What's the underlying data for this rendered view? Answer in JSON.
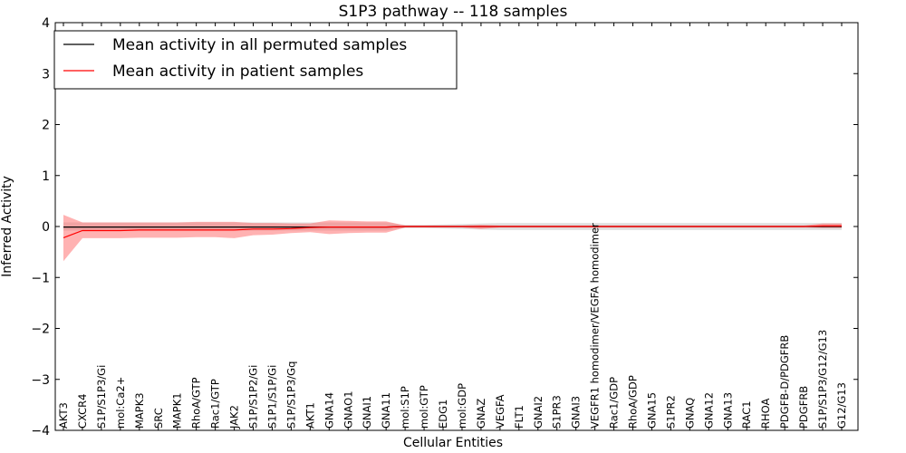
{
  "chart_data": {
    "type": "line",
    "title": "S1P3 pathway -- 118 samples",
    "xlabel": "Cellular Entities",
    "ylabel": "Inferred Activity",
    "ylim": [
      -4,
      4
    ],
    "yticks": [
      "−4",
      "−3",
      "−2",
      "−1",
      "0",
      "1",
      "2",
      "3",
      "4"
    ],
    "legend_position": "top-left",
    "categories": [
      "AKT3",
      "CXCR4",
      "S1P/S1P3/Gi",
      "mol:Ca2+",
      "MAPK3",
      "SRC",
      "MAPK1",
      "RhoA/GTP",
      "Rac1/GTP",
      "JAK2",
      "S1P/S1P2/Gi",
      "S1P1/S1P/Gi",
      "S1P/S1P3/Gq",
      "AKT1",
      "GNA14",
      "GNAO1",
      "GNAI1",
      "GNA11",
      "mol:S1P",
      "mol:GTP",
      "EDG1",
      "mol:GDP",
      "GNAZ",
      "VEGFA",
      "FLT1",
      "GNAI2",
      "S1PR3",
      "GNAI3",
      "VEGFR1 homodimer/VEGFA homodimer",
      "Rac1/GDP",
      "RhoA/GDP",
      "GNA15",
      "S1PR2",
      "GNAQ",
      "GNA12",
      "GNA13",
      "RAC1",
      "RHOA",
      "PDGFB-D/PDGFRB",
      "PDGFRB",
      "S1P/S1P3/G12/G13",
      "G12/G13"
    ],
    "series": [
      {
        "name": "Mean activity in all permuted samples",
        "color": "#000000",
        "values": [
          -0.01,
          -0.01,
          -0.01,
          -0.01,
          -0.01,
          -0.01,
          -0.01,
          -0.01,
          -0.01,
          -0.01,
          -0.01,
          -0.01,
          -0.01,
          -0.01,
          -0.01,
          -0.01,
          -0.01,
          -0.01,
          0,
          0,
          0,
          0,
          0,
          0,
          0,
          0,
          0,
          0,
          0,
          0,
          0,
          0,
          0,
          0,
          0,
          0,
          0,
          0,
          0,
          0,
          0,
          0
        ],
        "band_lower": [
          -0.08,
          -0.08,
          -0.08,
          -0.08,
          -0.08,
          -0.08,
          -0.08,
          -0.08,
          -0.08,
          -0.08,
          -0.08,
          -0.08,
          -0.08,
          -0.08,
          -0.08,
          -0.08,
          -0.08,
          -0.08,
          -0.03,
          -0.03,
          -0.04,
          -0.05,
          -0.06,
          -0.07,
          -0.07,
          -0.07,
          -0.07,
          -0.07,
          -0.07,
          -0.07,
          -0.07,
          -0.07,
          -0.07,
          -0.07,
          -0.07,
          -0.07,
          -0.07,
          -0.07,
          -0.07,
          -0.07,
          -0.07,
          -0.07
        ],
        "band_upper": [
          0.08,
          0.08,
          0.08,
          0.08,
          0.08,
          0.08,
          0.08,
          0.08,
          0.08,
          0.08,
          0.08,
          0.08,
          0.08,
          0.08,
          0.08,
          0.08,
          0.08,
          0.08,
          0.03,
          0.03,
          0.04,
          0.05,
          0.06,
          0.07,
          0.07,
          0.07,
          0.07,
          0.07,
          0.07,
          0.07,
          0.07,
          0.07,
          0.07,
          0.07,
          0.07,
          0.07,
          0.07,
          0.07,
          0.07,
          0.07,
          0.07,
          0.07
        ]
      },
      {
        "name": "Mean activity in patient samples",
        "color": "#ff0000",
        "values": [
          -0.22,
          -0.08,
          -0.08,
          -0.08,
          -0.07,
          -0.07,
          -0.07,
          -0.07,
          -0.07,
          -0.07,
          -0.05,
          -0.05,
          -0.04,
          -0.02,
          -0.01,
          -0.01,
          -0.01,
          -0.01,
          0,
          0,
          0,
          0,
          0,
          0,
          0,
          0,
          0,
          0,
          0,
          0,
          0,
          0,
          0,
          0,
          0,
          0,
          0,
          0,
          0,
          0,
          0.01,
          0.01
        ],
        "band_lower": [
          -0.68,
          -0.23,
          -0.23,
          -0.23,
          -0.22,
          -0.22,
          -0.22,
          -0.21,
          -0.21,
          -0.23,
          -0.17,
          -0.16,
          -0.13,
          -0.11,
          -0.15,
          -0.13,
          -0.12,
          -0.12,
          -0.02,
          -0.02,
          -0.02,
          -0.02,
          -0.05,
          -0.02,
          -0.02,
          -0.02,
          -0.02,
          -0.02,
          -0.02,
          -0.02,
          -0.02,
          -0.02,
          -0.02,
          -0.02,
          -0.02,
          -0.02,
          -0.02,
          -0.02,
          -0.02,
          -0.02,
          -0.03,
          -0.03
        ],
        "band_upper": [
          0.23,
          0.08,
          0.08,
          0.08,
          0.08,
          0.08,
          0.08,
          0.09,
          0.09,
          0.09,
          0.07,
          0.07,
          0.06,
          0.06,
          0.12,
          0.11,
          0.1,
          0.1,
          0.02,
          0.02,
          0.02,
          0.02,
          0.03,
          0.02,
          0.02,
          0.02,
          0.02,
          0.02,
          0.02,
          0.02,
          0.02,
          0.02,
          0.02,
          0.02,
          0.02,
          0.02,
          0.02,
          0.02,
          0.02,
          0.02,
          0.06,
          0.06
        ]
      }
    ]
  }
}
